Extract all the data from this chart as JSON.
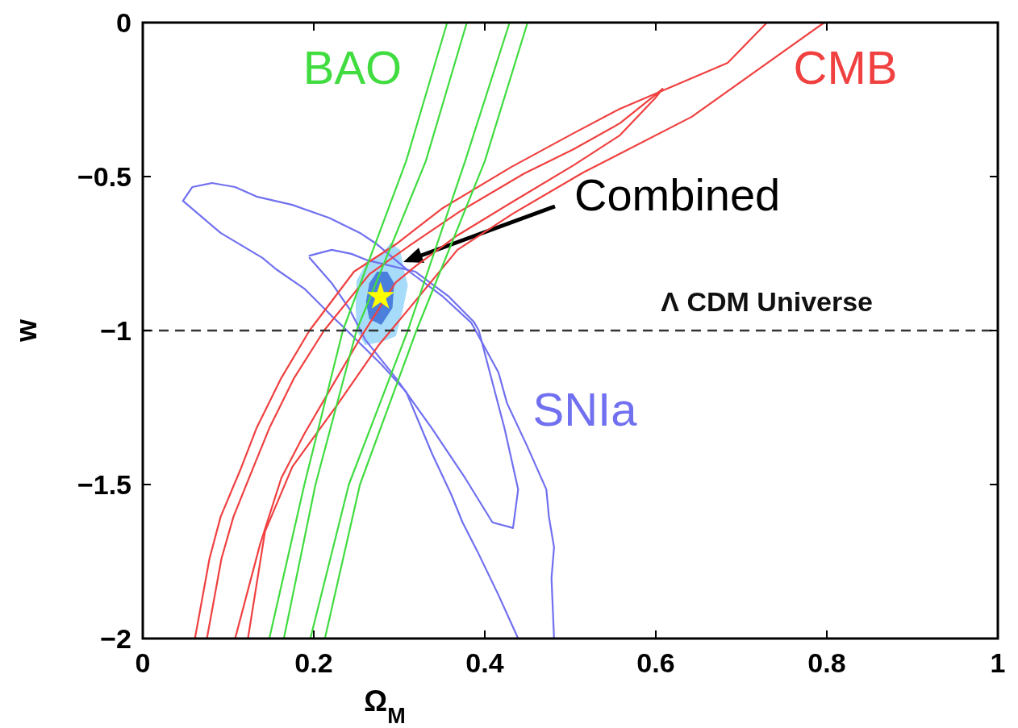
{
  "chart_data": {
    "type": "line",
    "xlabel": "Ω$_{M}$",
    "ylabel": "w",
    "xlim": [
      0,
      1
    ],
    "ylim": [
      -2,
      0
    ],
    "xticks": [
      0,
      0.2,
      0.4,
      0.6,
      0.8,
      1
    ],
    "yticks": [
      -2,
      -1.5,
      -1,
      -0.5,
      0
    ],
    "grid": false,
    "legend": false,
    "marker": "none",
    "line_style": "solid",
    "series": [
      {
        "name": "SNIa",
        "color": "#7070f0",
        "x": [
          0.439,
          0.416,
          0.391,
          0.374,
          0.361,
          0.338,
          0.308,
          0.279,
          0.234,
          0.221,
          0.189,
          0.156,
          0.14,
          0.091,
          0.047,
          0.058,
          0.081,
          0.108,
          0.133,
          0.175,
          0.218,
          0.254,
          0.274,
          0.312,
          0.351,
          0.384,
          0.416,
          0.426,
          0.449,
          0.472,
          0.475,
          0.481,
          0.478,
          0.481
        ],
        "values": [
          -2,
          -1.859,
          -1.715,
          -1.623,
          -1.534,
          -1.398,
          -1.199,
          -1.11,
          -0.987,
          -0.953,
          -0.864,
          -0.801,
          -0.764,
          -0.683,
          -0.579,
          -0.534,
          -0.521,
          -0.534,
          -0.565,
          -0.592,
          -0.634,
          -0.683,
          -0.72,
          -0.809,
          -0.89,
          -0.974,
          -1.136,
          -1.236,
          -1.372,
          -1.516,
          -1.605,
          -1.704,
          -1.804,
          -2
        ]
      },
      {
        "color": "#7070f0",
        "x": [
          0.195,
          0.221,
          0.244,
          0.263,
          0.319,
          0.358,
          0.387,
          0.393,
          0.423,
          0.439,
          0.433,
          0.409,
          0.377,
          0.338,
          0.296,
          0.26,
          0.241,
          0.221,
          0.195
        ],
        "values": [
          -0.757,
          -0.738,
          -0.751,
          -0.772,
          -0.809,
          -0.89,
          -0.971,
          -1,
          -1.317,
          -1.516,
          -1.641,
          -1.623,
          -1.479,
          -1.317,
          -1.154,
          -1.029,
          -0.927,
          -0.846,
          -0.764
        ]
      },
      {
        "type": "area",
        "color": "#a6dcfa",
        "x": [
          0.29,
          0.301,
          0.306,
          0.31,
          0.304,
          0.296,
          0.279,
          0.26,
          0.25,
          0.249,
          0.25,
          0.263,
          0.279,
          0.29
        ],
        "values": [
          -0.715,
          -0.738,
          -0.809,
          -0.853,
          -0.935,
          -1.018,
          -1.037,
          -1.047,
          -1,
          -0.921,
          -0.838,
          -0.772,
          -0.751,
          -0.715
        ]
      },
      {
        "type": "area",
        "color": "#4a7fdc",
        "x": [
          0.274,
          0.286,
          0.294,
          0.292,
          0.279,
          0.265,
          0.261,
          0.265,
          0.274
        ],
        "values": [
          -0.809,
          -0.809,
          -0.846,
          -0.927,
          -0.982,
          -0.963,
          -0.908,
          -0.846,
          -0.809
        ]
      },
      {
        "name": "CMB",
        "color": "#f04040",
        "x": [
          0.061,
          0.078,
          0.091,
          0.114,
          0.133,
          0.162,
          0.195,
          0.247,
          0.296,
          0.351,
          0.431,
          0.504,
          0.558,
          0.684,
          0.73,
          0.797,
          0.642,
          0.515,
          0.433,
          0.368,
          0.312,
          0.276,
          0.227,
          0.175,
          0.143,
          0.123
        ],
        "values": [
          -2,
          -1.741,
          -1.605,
          -1.453,
          -1.317,
          -1.154,
          -1,
          -0.809,
          -0.72,
          -0.602,
          -0.469,
          -0.359,
          -0.28,
          -0.131,
          0,
          0,
          -0.306,
          -0.487,
          -0.62,
          -0.738,
          -0.927,
          -1.047,
          -1.243,
          -1.442,
          -1.652,
          -2
        ]
      },
      {
        "color": "#f04040",
        "x": [
          0.075,
          0.092,
          0.106,
          0.128,
          0.148,
          0.177,
          0.212,
          0.265,
          0.314,
          0.371,
          0.446,
          0.504,
          0.558,
          0.599,
          0.608,
          0.599,
          0.558,
          0.504,
          0.433,
          0.368,
          0.319,
          0.296,
          0.254,
          0.227,
          0.189,
          0.162,
          0.137,
          0.108
        ],
        "values": [
          -2,
          -1.741,
          -1.605,
          -1.453,
          -1.317,
          -1.154,
          -1,
          -0.817,
          -0.72,
          -0.613,
          -0.49,
          -0.411,
          -0.327,
          -0.236,
          -0.215,
          -0.246,
          -0.366,
          -0.463,
          -0.581,
          -0.691,
          -0.791,
          -0.843,
          -1.026,
          -1.154,
          -1.335,
          -1.479,
          -1.696,
          -2
        ]
      },
      {
        "name": "BAO",
        "color": "#40dc40",
        "x": [
          0.148,
          0.189,
          0.234,
          0.308,
          0.356,
          0.45,
          0.4,
          0.32,
          0.254,
          0.213
        ],
        "values": [
          -2,
          -1.5,
          -1,
          -0.45,
          0,
          0,
          -0.45,
          -1,
          -1.5,
          -2
        ]
      },
      {
        "color": "#40dc40",
        "x": [
          0.165,
          0.202,
          0.25,
          0.331,
          0.379,
          0.429,
          0.377,
          0.31,
          0.241,
          0.196
        ],
        "values": [
          -2,
          -1.5,
          -1,
          -0.45,
          0,
          0,
          -0.45,
          -1,
          -1.5,
          -2
        ]
      },
      {
        "type": "scatter",
        "marker": "star",
        "color": "#ffff00",
        "x": [
          0.278
        ],
        "values": [
          -0.89
        ]
      }
    ],
    "ref_lines": [
      {
        "axis": "y",
        "value": -1,
        "label": "Λ CDM Universe",
        "line_style": "dashed",
        "color": "#333333"
      }
    ],
    "annotations": [
      "Combined"
    ]
  }
}
